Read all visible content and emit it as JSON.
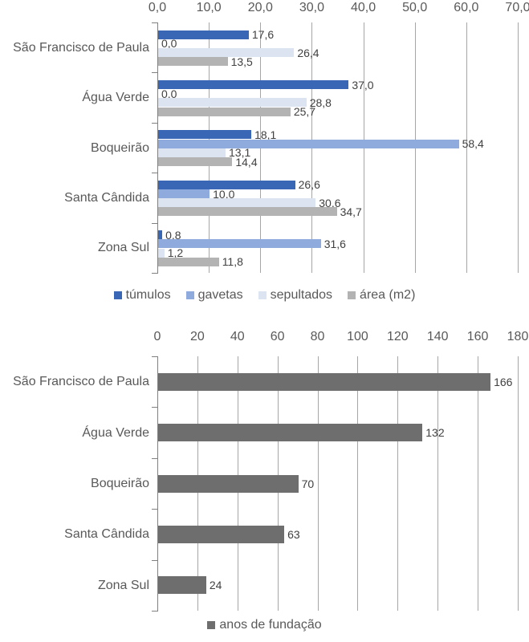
{
  "page": {
    "background": "#ffffff"
  },
  "colors": {
    "grid": "#a6a6a6",
    "axis": "#808080",
    "tick_text": "#595959",
    "value_text": "#404040"
  },
  "chart_data": [
    {
      "type": "bar",
      "orientation": "horizontal",
      "title": "",
      "categories": [
        "São Francisco de Paula",
        "Água Verde",
        "Boqueirão",
        "Santa Cândida",
        "Zona Sul"
      ],
      "series": [
        {
          "name": "túmulos",
          "color": "#3a67b5",
          "pattern": false,
          "values": [
            17.6,
            37.0,
            18.1,
            26.6,
            0.8
          ],
          "value_labels": [
            "17,6",
            "37,0",
            "18,1",
            "26,6",
            "0,8"
          ]
        },
        {
          "name": "gavetas",
          "color": "#8faadc",
          "pattern": false,
          "values": [
            0.0,
            0.0,
            58.4,
            10.0,
            31.6
          ],
          "value_labels": [
            "0,0",
            "0,0",
            "58,4",
            "10,0",
            "31,6"
          ]
        },
        {
          "name": "sepultados",
          "color": "#dce4f1",
          "pattern": false,
          "values": [
            26.4,
            28.8,
            13.1,
            30.6,
            1.2
          ],
          "value_labels": [
            "26,4",
            "28,8",
            "13,1",
            "30,6",
            "1,2"
          ]
        },
        {
          "name": "área (m2)",
          "color": "#b3b3b3",
          "pattern": true,
          "values": [
            13.5,
            25.7,
            14.4,
            34.7,
            11.8
          ],
          "value_labels": [
            "13,5",
            "25,7",
            "14,4",
            "34,7",
            "11,8"
          ]
        }
      ],
      "x_axis": {
        "min": 0,
        "max": 70,
        "step": 10,
        "position": "top",
        "tick_labels": [
          "0,0",
          "10,0",
          "20,0",
          "30,0",
          "40,0",
          "50,0",
          "60,0",
          "70,0"
        ]
      },
      "grid": true,
      "legend_position": "bottom"
    },
    {
      "type": "bar",
      "orientation": "horizontal",
      "title": "",
      "categories": [
        "São Francisco de Paula",
        "Água Verde",
        "Boqueirão",
        "Santa Cândida",
        "Zona Sul"
      ],
      "series": [
        {
          "name": "anos de fundação",
          "color": "#6e6e6e",
          "pattern": false,
          "values": [
            166,
            132,
            70,
            63,
            24
          ],
          "value_labels": [
            "166",
            "132",
            "70",
            "63",
            "24"
          ]
        }
      ],
      "x_axis": {
        "min": 0,
        "max": 180,
        "step": 20,
        "position": "top",
        "tick_labels": [
          "0",
          "20",
          "40",
          "60",
          "80",
          "100",
          "120",
          "140",
          "160",
          "180"
        ]
      },
      "grid": true,
      "legend_position": "bottom"
    }
  ]
}
